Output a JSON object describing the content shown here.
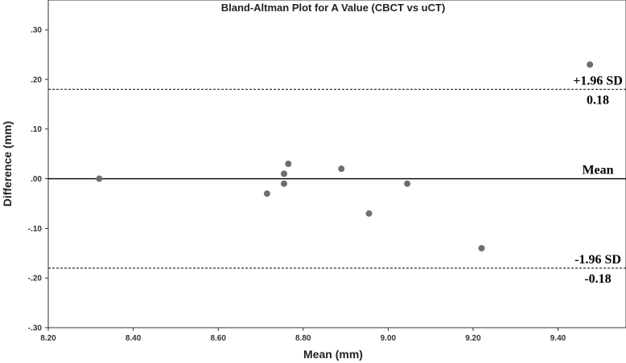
{
  "chart_data": {
    "type": "scatter",
    "title": "Bland-Altman Plot for A Value (CBCT vs uCT)",
    "xlabel": "Mean (mm)",
    "ylabel": "Difference (mm)",
    "xlim": [
      8.2,
      9.56
    ],
    "ylim": [
      -0.3,
      0.36
    ],
    "x_ticks": [
      8.2,
      8.4,
      8.6,
      8.8,
      9.0,
      9.2,
      9.4
    ],
    "x_tick_labels": [
      "8.20",
      "8.40",
      "8.60",
      "8.80",
      "9.00",
      "9.20",
      "9.40"
    ],
    "y_ticks": [
      -0.3,
      -0.2,
      -0.1,
      0.0,
      0.1,
      0.2,
      0.3
    ],
    "y_tick_labels": [
      "-.30",
      "-.20",
      "-.10",
      ".00",
      ".10",
      ".20",
      ".30"
    ],
    "grid": false,
    "point_color": "#6e6e6e",
    "points": [
      {
        "x": 8.32,
        "y": 0.0
      },
      {
        "x": 8.715,
        "y": -0.03
      },
      {
        "x": 8.755,
        "y": 0.01
      },
      {
        "x": 8.755,
        "y": -0.01
      },
      {
        "x": 8.765,
        "y": 0.03
      },
      {
        "x": 8.89,
        "y": 0.02
      },
      {
        "x": 8.955,
        "y": -0.07
      },
      {
        "x": 9.045,
        "y": -0.01
      },
      {
        "x": 9.22,
        "y": -0.14
      },
      {
        "x": 9.475,
        "y": 0.23
      }
    ],
    "reference_lines": [
      {
        "y": 0.18,
        "style": "dashed",
        "label": "+1.96 SD",
        "value_label": "0.18"
      },
      {
        "y": 0.0,
        "style": "solid",
        "label": "Mean",
        "value_label": ""
      },
      {
        "y": -0.18,
        "style": "dashed",
        "label": "-1.96 SD",
        "value_label": "-0.18"
      }
    ]
  }
}
